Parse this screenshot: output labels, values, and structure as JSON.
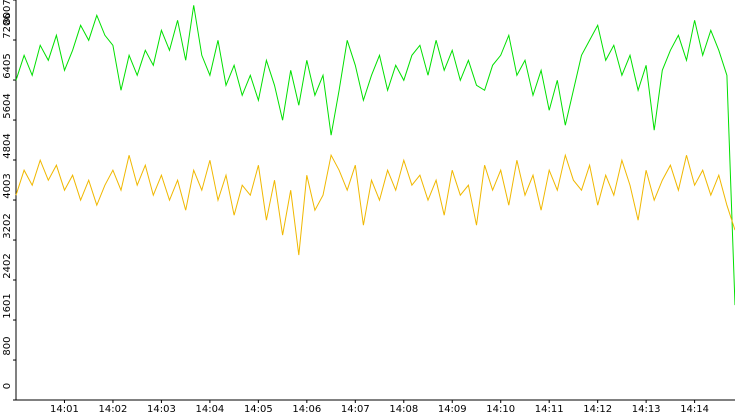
{
  "chart_data": {
    "type": "line",
    "categories": [
      null,
      null,
      null,
      null,
      null,
      null,
      "14:01",
      null,
      null,
      null,
      null,
      null,
      "14:02",
      null,
      null,
      null,
      null,
      null,
      "14:03",
      null,
      null,
      null,
      null,
      null,
      "14:04",
      null,
      null,
      null,
      null,
      null,
      "14:05",
      null,
      null,
      null,
      null,
      null,
      "14:06",
      null,
      null,
      null,
      null,
      null,
      "14:07",
      null,
      null,
      null,
      null,
      null,
      "14:08",
      null,
      null,
      null,
      null,
      null,
      "14:09",
      null,
      null,
      null,
      null,
      null,
      "14:10",
      null,
      null,
      null,
      null,
      null,
      "14:11",
      null,
      null,
      null,
      null,
      null,
      "14:12",
      null,
      null,
      null,
      null,
      null,
      "14:13",
      null,
      null,
      null,
      null,
      null,
      "14:14",
      null,
      null,
      null,
      null,
      null
    ],
    "series": [
      {
        "color": "#00e000",
        "values": [
          6400,
          6900,
          6500,
          7100,
          6800,
          7300,
          6600,
          7000,
          7500,
          7200,
          7700,
          7300,
          7100,
          6200,
          6900,
          6500,
          7000,
          6700,
          7400,
          7000,
          7600,
          6800,
          7900,
          6900,
          6500,
          7200,
          6300,
          6700,
          6100,
          6500,
          6000,
          6800,
          6300,
          5600,
          6600,
          5900,
          6800,
          6100,
          6500,
          5300,
          6200,
          7200,
          6700,
          6000,
          6500,
          6900,
          6200,
          6700,
          6400,
          6900,
          7100,
          6500,
          7200,
          6600,
          7000,
          6400,
          6800,
          6300,
          6200,
          6700,
          6900,
          7300,
          6500,
          6800,
          6100,
          6600,
          5800,
          6400,
          5500,
          6200,
          6900,
          7200,
          7500,
          6800,
          7100,
          6500,
          6900,
          6200,
          6700,
          5400,
          6600,
          7000,
          7300,
          6800,
          7600,
          6900,
          7400,
          7000,
          6500,
          1900
        ]
      },
      {
        "color": "#f0b800",
        "values": [
          4100,
          4600,
          4300,
          4800,
          4400,
          4700,
          4200,
          4500,
          4000,
          4400,
          3900,
          4300,
          4600,
          4200,
          4900,
          4300,
          4700,
          4100,
          4500,
          4000,
          4400,
          3800,
          4600,
          4200,
          4800,
          4000,
          4500,
          3700,
          4300,
          4100,
          4700,
          3600,
          4400,
          3300,
          4200,
          2900,
          4500,
          3800,
          4100,
          4900,
          4600,
          4200,
          4700,
          3500,
          4400,
          4000,
          4600,
          4200,
          4800,
          4300,
          4500,
          4000,
          4400,
          3700,
          4600,
          4100,
          4300,
          3500,
          4700,
          4200,
          4600,
          3900,
          4800,
          4100,
          4500,
          3800,
          4600,
          4200,
          4900,
          4400,
          4200,
          4700,
          3900,
          4500,
          4100,
          4800,
          4300,
          3600,
          4600,
          4000,
          4400,
          4700,
          4200,
          4900,
          4300,
          4600,
          4100,
          4500,
          3900,
          3400
        ]
      }
    ],
    "ylim": [
      0,
      8007
    ],
    "yticks": [
      0,
      800,
      1601,
      2402,
      3202,
      4003,
      4804,
      5604,
      6405,
      7206,
      8007
    ],
    "grid": false
  }
}
